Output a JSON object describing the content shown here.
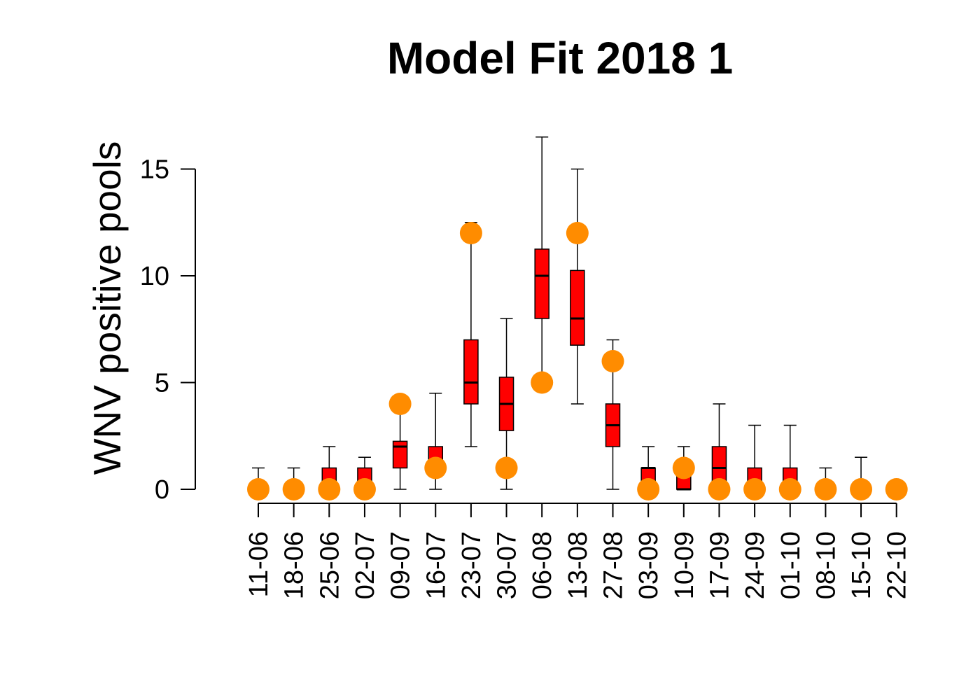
{
  "chart_data": {
    "type": "boxplot",
    "title": "Model Fit 2018 1",
    "xlabel": "",
    "ylabel": "WNV positive pools",
    "categories": [
      "11-06",
      "18-06",
      "25-06",
      "02-07",
      "09-07",
      "16-07",
      "23-07",
      "30-07",
      "06-08",
      "13-08",
      "27-08",
      "03-09",
      "10-09",
      "17-09",
      "24-09",
      "01-10",
      "08-10",
      "15-10",
      "22-10"
    ],
    "yticks": [
      0,
      5,
      10,
      15
    ],
    "ylim": [
      0,
      16.5
    ],
    "grid": false,
    "legend": "none",
    "boxes": [
      {
        "lower_whisker": 0,
        "q1": 0,
        "median": 0,
        "q3": 0,
        "upper_whisker": 1
      },
      {
        "lower_whisker": 0,
        "q1": 0,
        "median": 0,
        "q3": 0,
        "upper_whisker": 1
      },
      {
        "lower_whisker": 0,
        "q1": 0,
        "median": 0,
        "q3": 1,
        "upper_whisker": 2
      },
      {
        "lower_whisker": 0,
        "q1": 0,
        "median": 0,
        "q3": 1,
        "upper_whisker": 1.5
      },
      {
        "lower_whisker": 0,
        "q1": 1,
        "median": 2,
        "q3": 2.25,
        "upper_whisker": 4
      },
      {
        "lower_whisker": 0,
        "q1": 1,
        "median": 1,
        "q3": 2,
        "upper_whisker": 4.5
      },
      {
        "lower_whisker": 2,
        "q1": 4,
        "median": 5,
        "q3": 7,
        "upper_whisker": 12.5
      },
      {
        "lower_whisker": 0,
        "q1": 2.75,
        "median": 4,
        "q3": 5.25,
        "upper_whisker": 8
      },
      {
        "lower_whisker": 5,
        "q1": 8,
        "median": 10,
        "q3": 11.25,
        "upper_whisker": 16.5
      },
      {
        "lower_whisker": 4,
        "q1": 6.75,
        "median": 8,
        "q3": 10.25,
        "upper_whisker": 15
      },
      {
        "lower_whisker": 0,
        "q1": 2,
        "median": 3,
        "q3": 4,
        "upper_whisker": 7
      },
      {
        "lower_whisker": 0,
        "q1": 0,
        "median": 1,
        "q3": 1,
        "upper_whisker": 2
      },
      {
        "lower_whisker": 0,
        "q1": 0,
        "median": 0,
        "q3": 1,
        "upper_whisker": 2
      },
      {
        "lower_whisker": 0,
        "q1": 0,
        "median": 1,
        "q3": 2,
        "upper_whisker": 4
      },
      {
        "lower_whisker": 0,
        "q1": 0,
        "median": 0,
        "q3": 1,
        "upper_whisker": 3
      },
      {
        "lower_whisker": 0,
        "q1": 0,
        "median": 0,
        "q3": 1,
        "upper_whisker": 3
      },
      {
        "lower_whisker": 0,
        "q1": 0,
        "median": 0,
        "q3": 0,
        "upper_whisker": 1
      },
      {
        "lower_whisker": 0,
        "q1": 0,
        "median": 0,
        "q3": 0,
        "upper_whisker": 1.5
      },
      {
        "lower_whisker": 0,
        "q1": 0,
        "median": 0,
        "q3": 0,
        "upper_whisker": 0
      }
    ],
    "observed": [
      0,
      0,
      0,
      0,
      4,
      1,
      12,
      1,
      5,
      12,
      6,
      0,
      1,
      0,
      0,
      0,
      0,
      0,
      0
    ],
    "colors": {
      "box_fill": "#ff0000",
      "observed_point": "#ff8c00",
      "line": "#000000"
    }
  }
}
